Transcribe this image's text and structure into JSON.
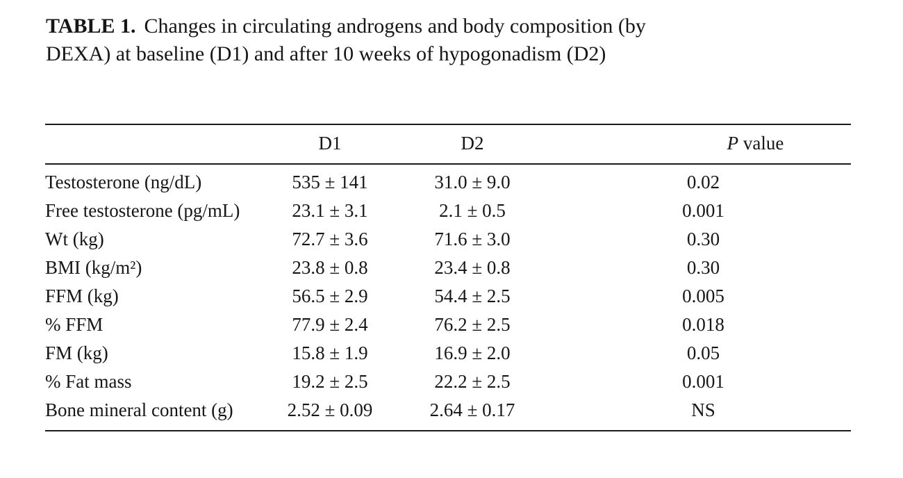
{
  "caption": {
    "label": "TABLE 1.",
    "text": "Changes in circulating androgens and body composition (by DEXA) at baseline (D1) and after 10 weeks of hypogonadism (D2)"
  },
  "table": {
    "columns": {
      "label": "",
      "d1": "D1",
      "d2": "D2",
      "p": {
        "italic": "P",
        "rest": " value"
      }
    },
    "rows": [
      {
        "label": "Testosterone (ng/dL)",
        "d1": "535 ± 141",
        "d2": "31.0 ± 9.0",
        "p": "0.02"
      },
      {
        "label": "Free testosterone (pg/mL)",
        "d1": "23.1 ± 3.1",
        "d2": "2.1 ± 0.5",
        "p": "0.001"
      },
      {
        "label": "Wt (kg)",
        "d1": "72.7 ± 3.6",
        "d2": "71.6 ± 3.0",
        "p": "0.30"
      },
      {
        "label": "BMI (kg/m²)",
        "d1": "23.8 ± 0.8",
        "d2": "23.4 ± 0.8",
        "p": "0.30"
      },
      {
        "label": "FFM (kg)",
        "d1": "56.5 ± 2.9",
        "d2": "54.4 ± 2.5",
        "p": "0.005"
      },
      {
        "label": "% FFM",
        "d1": "77.9 ± 2.4",
        "d2": "76.2 ± 2.5",
        "p": "0.018"
      },
      {
        "label": "FM (kg)",
        "d1": "15.8 ± 1.9",
        "d2": "16.9 ± 2.0",
        "p": "0.05"
      },
      {
        "label": "% Fat mass",
        "d1": "19.2 ± 2.5",
        "d2": "22.2 ± 2.5",
        "p": "0.001"
      },
      {
        "label": "Bone mineral content (g)",
        "d1": "2.52 ± 0.09",
        "d2": "2.64 ± 0.17",
        "p": "NS"
      }
    ]
  }
}
